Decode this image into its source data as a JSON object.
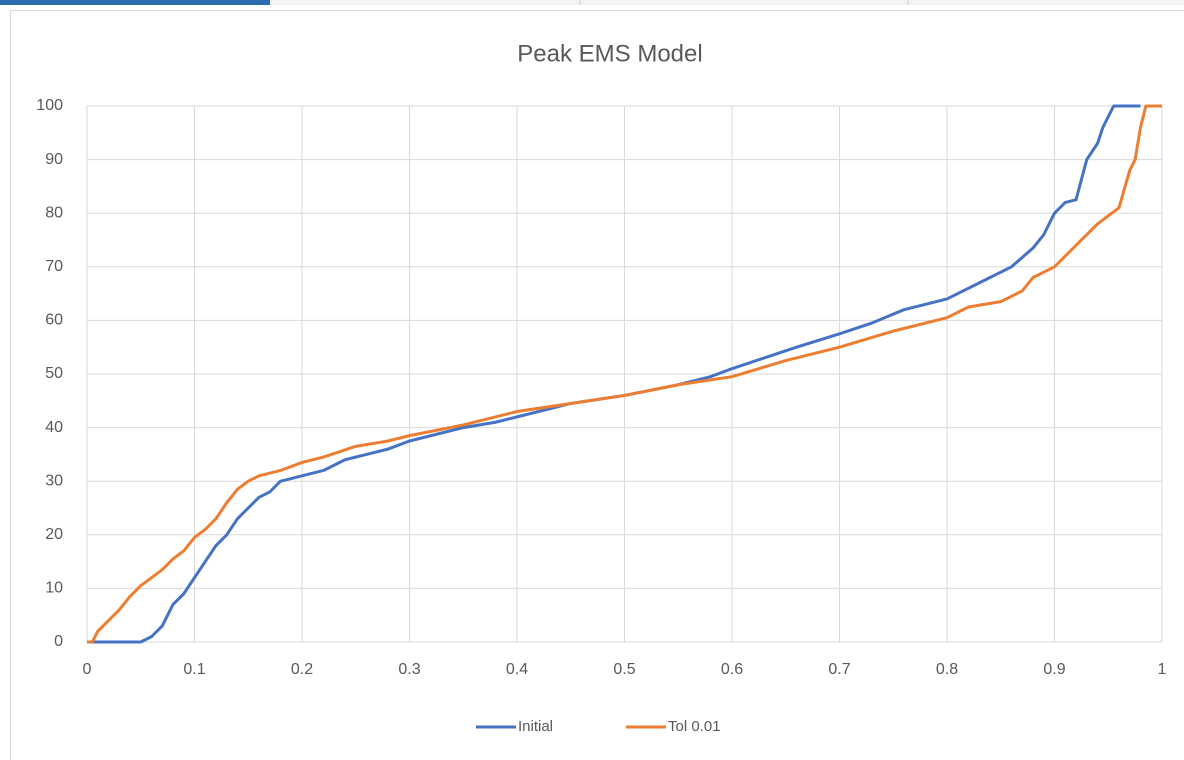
{
  "chart_data": {
    "type": "line",
    "title": "Peak EMS Model",
    "xlim": [
      0,
      1
    ],
    "xticks": [
      0,
      0.1,
      0.2,
      0.3,
      0.4,
      0.5,
      0.6,
      0.7,
      0.8,
      0.9,
      1
    ],
    "ylim": [
      0,
      100
    ],
    "yticks": [
      0,
      10,
      20,
      30,
      40,
      50,
      60,
      70,
      80,
      90,
      100
    ],
    "grid": true,
    "legend": "bottom",
    "series": [
      {
        "name": "Initial",
        "color": "#4472c4",
        "x": [
          0,
          0.05,
          0.06,
          0.07,
          0.08,
          0.09,
          0.1,
          0.11,
          0.12,
          0.13,
          0.14,
          0.15,
          0.16,
          0.17,
          0.18,
          0.19,
          0.2,
          0.22,
          0.24,
          0.26,
          0.28,
          0.3,
          0.32,
          0.35,
          0.38,
          0.4,
          0.42,
          0.45,
          0.5,
          0.55,
          0.58,
          0.6,
          0.63,
          0.66,
          0.7,
          0.73,
          0.76,
          0.8,
          0.83,
          0.86,
          0.88,
          0.89,
          0.9,
          0.91,
          0.92,
          0.93,
          0.94,
          0.945,
          0.95,
          0.955,
          0.98
        ],
        "values": [
          0,
          0,
          1,
          3,
          7,
          9,
          12,
          15,
          18,
          20,
          23,
          25,
          27,
          28,
          30,
          30.5,
          31,
          32,
          34,
          35,
          36,
          37.5,
          38.5,
          40,
          41,
          42,
          43,
          44.5,
          46,
          48,
          49.5,
          51,
          53,
          55,
          57.5,
          59.5,
          62,
          64,
          67,
          70,
          73.5,
          76,
          80,
          82,
          82.5,
          90,
          93,
          96,
          98,
          100,
          100
        ]
      },
      {
        "name": "Tol 0.01",
        "color": "#ed7d31",
        "x": [
          0,
          0.005,
          0.01,
          0.02,
          0.03,
          0.04,
          0.05,
          0.06,
          0.07,
          0.08,
          0.09,
          0.1,
          0.11,
          0.12,
          0.13,
          0.14,
          0.15,
          0.16,
          0.18,
          0.2,
          0.22,
          0.25,
          0.28,
          0.3,
          0.35,
          0.4,
          0.45,
          0.5,
          0.55,
          0.6,
          0.65,
          0.7,
          0.75,
          0.8,
          0.82,
          0.85,
          0.87,
          0.88,
          0.9,
          0.92,
          0.94,
          0.96,
          0.97,
          0.975,
          0.98,
          0.985,
          1
        ],
        "values": [
          0,
          0,
          2,
          4,
          6,
          8.5,
          10.5,
          12,
          13.5,
          15.5,
          17,
          19.5,
          21,
          23,
          26,
          28.5,
          30,
          31,
          32,
          33.5,
          34.5,
          36.5,
          37.5,
          38.5,
          40.5,
          43,
          44.5,
          46,
          48,
          49.5,
          52.5,
          55,
          58,
          60.5,
          62.5,
          63.5,
          65.5,
          68,
          70,
          74,
          78,
          81,
          88,
          90,
          96,
          100,
          100
        ]
      }
    ]
  }
}
